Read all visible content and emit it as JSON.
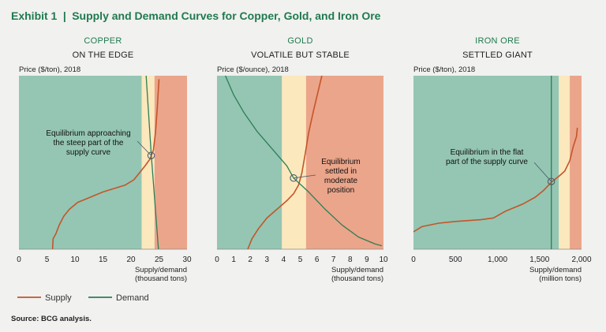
{
  "header": {
    "exhibit": "Exhibit 1",
    "title": "Supply and Demand Curves for Copper, Gold, and Iron Ore"
  },
  "colors": {
    "green_zone": "#94c6b3",
    "yellow_zone": "#fbe8bd",
    "red_zone": "#eba58a",
    "supply": "#c4552a",
    "demand": "#2d7d56",
    "title": "#1f7a4d"
  },
  "legend": [
    {
      "label": "Supply",
      "color": "#c4552a"
    },
    {
      "label": "Demand",
      "color": "#2d7d56"
    }
  ],
  "source": "Source: BCG analysis.",
  "chart_data": [
    {
      "type": "line",
      "title": "COPPER",
      "subtitle": "ON THE EDGE",
      "ylabel": "Price ($/ton), 2018",
      "xlabel": [
        "Supply/demand",
        "(thousand tons)"
      ],
      "xlim": [
        0,
        30
      ],
      "xticks": [
        0,
        5,
        10,
        15,
        20,
        25,
        30
      ],
      "xtick_labels": [
        "0",
        "5",
        "10",
        "15",
        "20",
        "25",
        "30"
      ],
      "zones": [
        {
          "zone": "green",
          "from": 0,
          "to": 21.9
        },
        {
          "zone": "yellow",
          "from": 21.9,
          "to": 24.2
        },
        {
          "zone": "red",
          "from": 24.2,
          "to": 30
        }
      ],
      "ylim": [
        0,
        100
      ],
      "series": [
        {
          "name": "Supply",
          "points": [
            [
              6.0,
              0
            ],
            [
              6.1,
              6
            ],
            [
              6.6,
              9
            ],
            [
              7.2,
              14
            ],
            [
              8.0,
              19
            ],
            [
              9.0,
              23
            ],
            [
              10.5,
              27
            ],
            [
              12.0,
              29
            ],
            [
              13.5,
              31
            ],
            [
              15.0,
              33
            ],
            [
              17.0,
              35
            ],
            [
              19.0,
              37
            ],
            [
              20.5,
              40
            ],
            [
              21.5,
              44
            ],
            [
              22.5,
              48
            ],
            [
              23.4,
              52
            ],
            [
              24.0,
              57
            ],
            [
              24.4,
              68
            ],
            [
              24.7,
              82
            ],
            [
              25.0,
              98
            ]
          ]
        },
        {
          "name": "Demand",
          "points": [
            [
              22.7,
              100
            ],
            [
              23.6,
              55
            ],
            [
              24.9,
              0
            ]
          ]
        }
      ],
      "equilibrium": [
        23.6,
        54
      ],
      "annotation": [
        "Equilibrium approaching",
        "the steep part of the",
        "supply curve"
      ]
    },
    {
      "type": "line",
      "title": "GOLD",
      "subtitle": "VOLATILE BUT STABLE",
      "ylabel": "Price ($/ounce), 2018",
      "xlabel": [
        "Supply/demand",
        "(thousand tons)"
      ],
      "xlim": [
        0,
        10
      ],
      "xticks": [
        0,
        1,
        2,
        3,
        4,
        5,
        6,
        7,
        8,
        9,
        10
      ],
      "xtick_labels": [
        "0",
        "1",
        "2",
        "3",
        "4",
        "5",
        "6",
        "7",
        "8",
        "9",
        "10"
      ],
      "zones": [
        {
          "zone": "green",
          "from": 0,
          "to": 3.9
        },
        {
          "zone": "yellow",
          "from": 3.9,
          "to": 5.35
        },
        {
          "zone": "red",
          "from": 5.35,
          "to": 10
        }
      ],
      "ylim": [
        0,
        100
      ],
      "series": [
        {
          "name": "Supply",
          "points": [
            [
              1.85,
              0
            ],
            [
              2.1,
              6
            ],
            [
              2.5,
              12
            ],
            [
              3.0,
              18
            ],
            [
              3.6,
              23
            ],
            [
              4.2,
              28
            ],
            [
              4.6,
              32
            ],
            [
              4.9,
              37
            ],
            [
              5.1,
              44
            ],
            [
              5.3,
              55
            ],
            [
              5.5,
              67
            ],
            [
              5.8,
              80
            ],
            [
              6.1,
              92
            ],
            [
              6.3,
              100
            ]
          ]
        },
        {
          "name": "Demand",
          "points": [
            [
              0.5,
              100
            ],
            [
              1.0,
              89
            ],
            [
              1.6,
              79
            ],
            [
              2.4,
              68
            ],
            [
              3.3,
              58
            ],
            [
              4.2,
              48
            ],
            [
              4.6,
              41
            ],
            [
              5.5,
              33
            ],
            [
              6.5,
              23
            ],
            [
              7.5,
              14
            ],
            [
              8.5,
              7
            ],
            [
              9.5,
              3
            ],
            [
              9.9,
              2
            ]
          ]
        }
      ],
      "equilibrium": [
        4.6,
        41
      ],
      "annotation": [
        "Equilibrium",
        "settled in",
        "moderate",
        "position"
      ]
    },
    {
      "type": "line",
      "title": "IRON ORE",
      "subtitle": "SETTLED GIANT",
      "ylabel": "Price ($/ton), 2018",
      "xlabel": [
        "Supply/demand",
        "(million tons)"
      ],
      "xlim": [
        0,
        2000
      ],
      "xticks": [
        0,
        500,
        1000,
        1500,
        2000
      ],
      "xtick_labels": [
        "0",
        "500",
        "1,000",
        "1,500",
        "2,000"
      ],
      "zones": [
        {
          "zone": "green",
          "from": 0,
          "to": 1730
        },
        {
          "zone": "yellow",
          "from": 1730,
          "to": 1860
        },
        {
          "zone": "red",
          "from": 1860,
          "to": 2000
        }
      ],
      "ylim": [
        0,
        100
      ],
      "series": [
        {
          "name": "Supply",
          "points": [
            [
              0,
              10
            ],
            [
              100,
              13
            ],
            [
              300,
              15
            ],
            [
              500,
              16
            ],
            [
              800,
              17
            ],
            [
              950,
              18
            ],
            [
              1100,
              22
            ],
            [
              1300,
              26
            ],
            [
              1450,
              30
            ],
            [
              1550,
              34
            ],
            [
              1650,
              39
            ],
            [
              1730,
              42
            ],
            [
              1800,
              45
            ],
            [
              1860,
              51
            ],
            [
              1900,
              59
            ],
            [
              1940,
              65
            ],
            [
              1950,
              70
            ]
          ]
        },
        {
          "name": "Demand",
          "points": [
            [
              1640,
              0
            ],
            [
              1640,
              100
            ]
          ]
        }
      ],
      "equilibrium": [
        1640,
        39
      ],
      "annotation": [
        "Equilibrium in the flat",
        "part of the supply curve"
      ]
    }
  ]
}
